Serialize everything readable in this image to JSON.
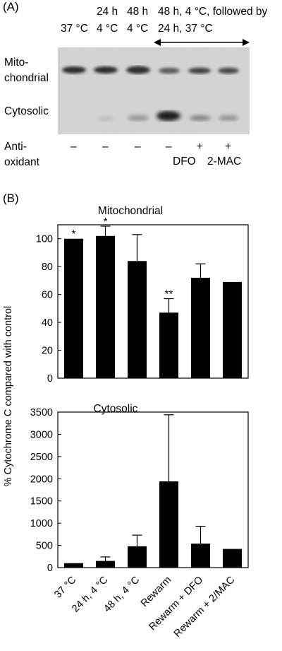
{
  "panel_a": {
    "label": "(A)",
    "header_row1": [
      "24 h",
      "48 h",
      "48 h, 4 °C, followed by"
    ],
    "header_row2": [
      "37 °C",
      "4 °C",
      "4 °C",
      "24 h, 37 °C"
    ],
    "row_labels": {
      "mito_line1": "Mito-",
      "mito_line2": "chondrial",
      "cyto": "Cytosolic"
    },
    "antioxidant_label_line1": "Anti-",
    "antioxidant_label_line2": "oxidant",
    "antioxidant_signs": [
      "–",
      "–",
      "–",
      "–",
      "+",
      "+"
    ],
    "antioxidant_names": [
      "DFO",
      "2-MAC"
    ]
  },
  "panel_b": {
    "label": "(B)",
    "y_axis_label": "% Cytochrome C compared with control"
  },
  "chart_data": [
    {
      "type": "bar",
      "title": "Mitochondrial",
      "categories": [
        "37 °C",
        "24 h, 4 °C",
        "48 h, 4 °C",
        "Rewarm",
        "Rewarm + DFO",
        "Rewarm + 2/MAC"
      ],
      "values": [
        100,
        102,
        84,
        47,
        72,
        69
      ],
      "error_upper": [
        0,
        7,
        19,
        10,
        10,
        0
      ],
      "annotations": [
        "*",
        "*",
        "",
        "**",
        "",
        ""
      ],
      "ylim": [
        0,
        110
      ],
      "yticks": [
        0,
        20,
        40,
        60,
        80,
        100
      ],
      "colors": {
        "bar": "#000000"
      }
    },
    {
      "type": "bar",
      "title": "Cytosolic",
      "categories": [
        "37 °C",
        "24 h, 4 °C",
        "48 h, 4 °C",
        "Rewarm",
        "Rewarm + DFO",
        "Rewarm + 2/MAC"
      ],
      "values": [
        100,
        150,
        480,
        1940,
        540,
        420
      ],
      "error_upper": [
        0,
        90,
        250,
        1500,
        390,
        0
      ],
      "ylim": [
        0,
        3500
      ],
      "yticks": [
        0,
        500,
        1000,
        1500,
        2000,
        2500,
        3000,
        3500
      ],
      "colors": {
        "bar": "#000000"
      }
    }
  ]
}
